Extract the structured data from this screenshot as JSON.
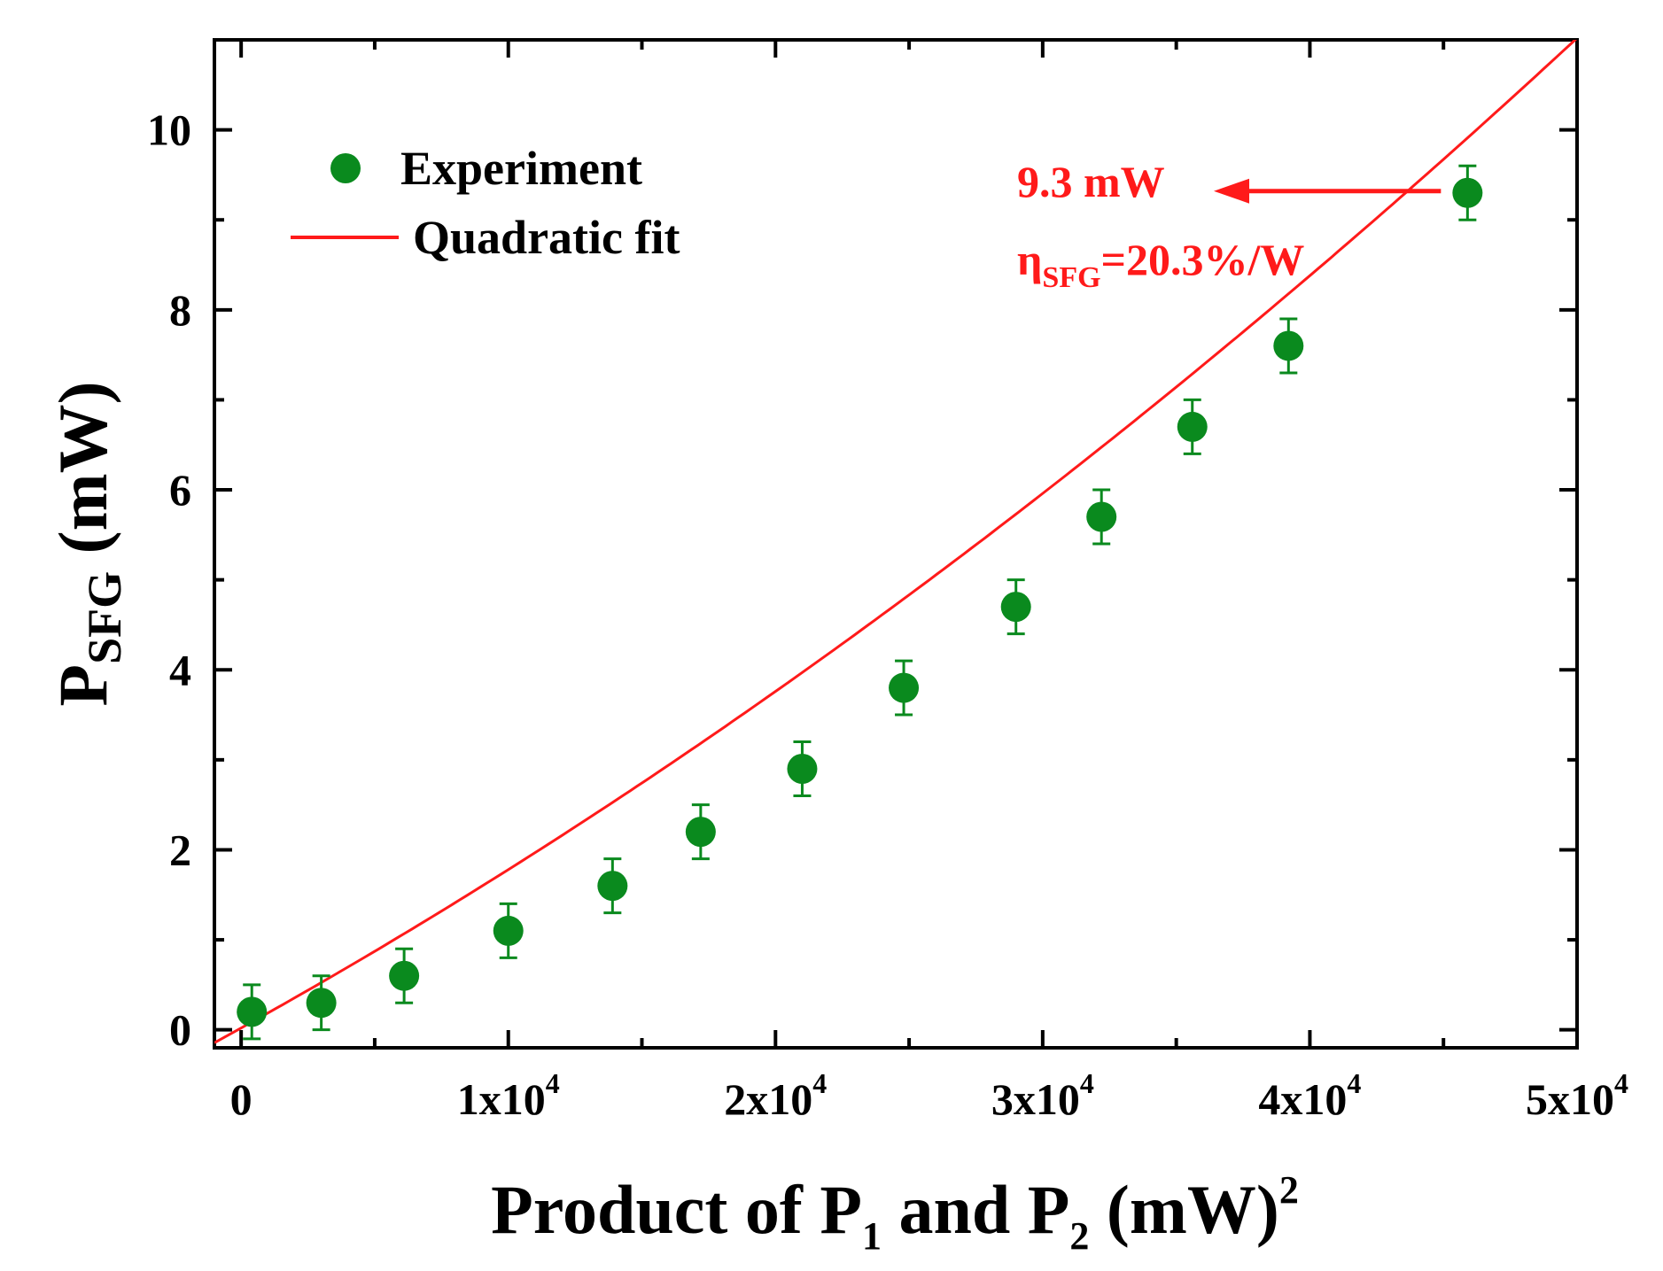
{
  "chart_data": {
    "type": "scatter",
    "title": "",
    "xlabel": {
      "main": "Product of P",
      "sub1": "1",
      "mid": " and P",
      "sub2": "2",
      "end": " (mW)",
      "sup": "2"
    },
    "ylabel": {
      "main": "P",
      "sub": "SFG",
      "end": " (mW)"
    },
    "xlim": [
      -1000,
      50000
    ],
    "ylim": [
      -0.2,
      11
    ],
    "x_ticks": [
      {
        "value": 0,
        "base": "0",
        "exp": ""
      },
      {
        "value": 10000,
        "base": "1x10",
        "exp": "4"
      },
      {
        "value": 20000,
        "base": "2x10",
        "exp": "4"
      },
      {
        "value": 30000,
        "base": "3x10",
        "exp": "4"
      },
      {
        "value": 40000,
        "base": "4x10",
        "exp": "4"
      },
      {
        "value": 50000,
        "base": "5x10",
        "exp": "4"
      }
    ],
    "y_ticks": [
      {
        "value": 0,
        "label": "0"
      },
      {
        "value": 2,
        "label": "2"
      },
      {
        "value": 4,
        "label": "4"
      },
      {
        "value": 6,
        "label": "6"
      },
      {
        "value": 8,
        "label": "8"
      },
      {
        "value": 10,
        "label": "10"
      }
    ],
    "series": [
      {
        "name": "Experiment",
        "kind": "scatter",
        "color": "#0a8a1e",
        "x": [
          400,
          3000,
          6100,
          10000,
          13900,
          17200,
          21000,
          24800,
          29000,
          32200,
          35600,
          39200,
          45900
        ],
        "y": [
          0.2,
          0.3,
          0.6,
          1.1,
          1.6,
          2.2,
          2.9,
          3.8,
          4.7,
          5.7,
          6.7,
          7.6,
          9.3
        ],
        "yerr": [
          0.3,
          0.3,
          0.3,
          0.3,
          0.3,
          0.3,
          0.3,
          0.3,
          0.3,
          0.3,
          0.3,
          0.3,
          0.3
        ]
      },
      {
        "name": "Quadratic fit",
        "kind": "line",
        "color": "#ff1a1a",
        "coefficients": {
          "a": 1.1e-09,
          "b": 0.000165,
          "c": 0.02
        },
        "x_range": [
          -1000,
          50000
        ]
      }
    ],
    "legend": {
      "position": "top-left",
      "entries": [
        "Experiment",
        "Quadratic fit"
      ]
    },
    "annotations": {
      "power_text": "9.3 mW",
      "efficiency_eta": "η",
      "efficiency_sub": "SFG",
      "efficiency_value": "=20.3%/W",
      "arrow_from": {
        "x": 45900,
        "y": 9.3
      },
      "color": "#ff1a1a"
    }
  }
}
